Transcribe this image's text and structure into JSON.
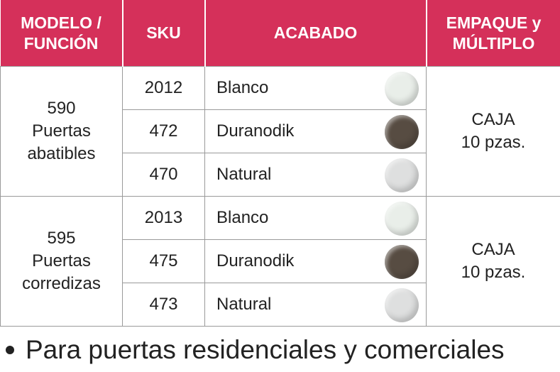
{
  "header": [
    [
      "MODELO /",
      "FUNCIÓN"
    ],
    [
      "SKU"
    ],
    [
      "ACABADO"
    ],
    [
      "EMPAQUE y",
      "MÚLTIPLO"
    ]
  ],
  "groups": [
    {
      "model": [
        "590",
        "Puertas",
        "abatibles"
      ],
      "items": [
        {
          "sku": "2012",
          "finish": "Blanco",
          "swatch": "#e9eee9"
        },
        {
          "sku": "472",
          "finish": "Duranodik",
          "swatch": "#574c42"
        },
        {
          "sku": "470",
          "finish": "Natural",
          "swatch": "#dedfdf"
        }
      ],
      "package": [
        "CAJA",
        "10 pzas."
      ]
    },
    {
      "model": [
        "595",
        "Puertas",
        "corredizas"
      ],
      "items": [
        {
          "sku": "2013",
          "finish": "Blanco",
          "swatch": "#e9eee9"
        },
        {
          "sku": "475",
          "finish": "Duranodik",
          "swatch": "#574c42"
        },
        {
          "sku": "473",
          "finish": "Natural",
          "swatch": "#dedfdf"
        }
      ],
      "package": [
        "CAJA",
        "10 pzas."
      ]
    }
  ],
  "note": "Para puertas residenciales y comerciales"
}
